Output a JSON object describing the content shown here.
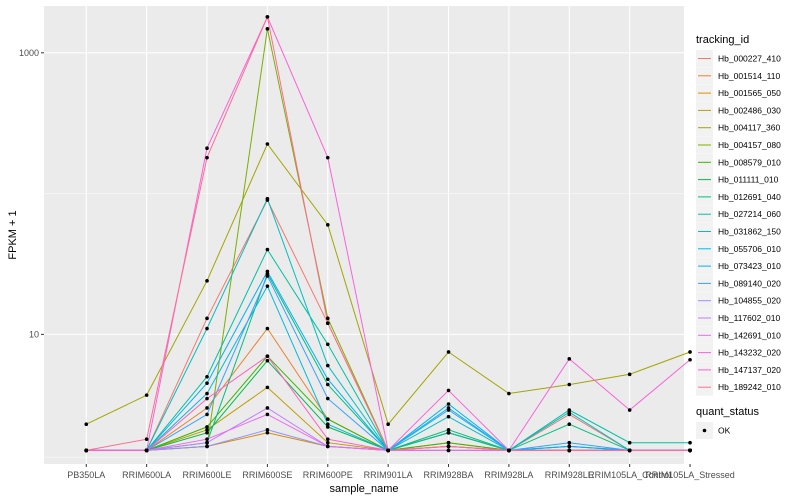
{
  "chart_data": {
    "type": "line",
    "xlabel": "sample_name",
    "ylabel": "FPKM + 1",
    "y_scale": "log10",
    "ylim": [
      1.2,
      2150
    ],
    "y_ticks": [
      10,
      1000
    ],
    "y_minor_ticks": [
      100
    ],
    "grid": true,
    "legend_placement": "right",
    "categories": [
      "PB350LA",
      "RRIM600LA",
      "RRIM600LE",
      "RRIM600SE",
      "RRIM600PE",
      "RRIM901LA",
      "RRIM928BA",
      "RRIM928LA",
      "RRIM928LE",
      "RRIM105LA_Control",
      "RRIM105LA_Stressed"
    ],
    "color_legend": {
      "title": "tracking_id",
      "entries": [
        "Hb_000227_410",
        "Hb_001514_110",
        "Hb_001565_050",
        "Hb_002486_030",
        "Hb_004117_360",
        "Hb_004157_080",
        "Hb_008579_010",
        "Hb_011111_010",
        "Hb_012691_040",
        "Hb_027214_060",
        "Hb_031862_150",
        "Hb_055706_010",
        "Hb_073423_010",
        "Hb_089140_020",
        "Hb_104855_020",
        "Hb_117602_010",
        "Hb_142691_010",
        "Hb_143232_020",
        "Hb_147137_020",
        "Hb_189242_010"
      ]
    },
    "shape_legend": {
      "title": "quant_status",
      "entries": [
        "OK"
      ]
    },
    "series": [
      {
        "name": "Hb_000227_410",
        "color": "#F8766D",
        "values": [
          1.5,
          1.5,
          13,
          90,
          12,
          1.5,
          2.0,
          1.5,
          2.7,
          1.5,
          1.5
        ]
      },
      {
        "name": "Hb_001514_110",
        "color": "#EA8331",
        "values": [
          1.5,
          1.5,
          3.0,
          11,
          2.5,
          1.5,
          2.0,
          1.5,
          1.6,
          1.5,
          1.5
        ]
      },
      {
        "name": "Hb_001565_050",
        "color": "#D89000",
        "values": [
          1.5,
          1.5,
          1.6,
          2.0,
          1.6,
          1.5,
          1.6,
          1.5,
          1.5,
          1.5,
          1.5
        ]
      },
      {
        "name": "Hb_002486_030",
        "color": "#C09B00",
        "values": [
          1.5,
          1.5,
          2.1,
          4.2,
          1.7,
          1.5,
          1.7,
          1.5,
          1.5,
          1.5,
          1.5
        ]
      },
      {
        "name": "Hb_004117_360",
        "color": "#A3A500",
        "values": [
          2.3,
          3.7,
          24,
          225,
          60,
          2.3,
          7.5,
          3.8,
          4.4,
          5.2,
          7.5
        ]
      },
      {
        "name": "Hb_004157_080",
        "color": "#7CAE00",
        "values": [
          1.5,
          1.5,
          1.6,
          1480,
          13,
          1.5,
          1.5,
          1.5,
          1.5,
          1.5,
          1.5
        ]
      },
      {
        "name": "Hb_008579_010",
        "color": "#39B600",
        "values": [
          1.5,
          1.5,
          2.2,
          7.0,
          2.5,
          1.5,
          1.7,
          1.5,
          1.5,
          1.5,
          1.5
        ]
      },
      {
        "name": "Hb_011111_010",
        "color": "#00BB4E",
        "values": [
          1.5,
          1.5,
          2.0,
          6.5,
          2.2,
          1.5,
          2.0,
          1.5,
          1.5,
          1.5,
          1.5
        ]
      },
      {
        "name": "Hb_012691_040",
        "color": "#00BF7D",
        "values": [
          1.5,
          1.5,
          1.7,
          27,
          4.4,
          1.5,
          2.1,
          1.5,
          2.3,
          1.5,
          1.5
        ]
      },
      {
        "name": "Hb_027214_060",
        "color": "#00C1A3",
        "values": [
          1.5,
          1.5,
          5.0,
          40,
          8.5,
          1.5,
          2.0,
          1.5,
          2.9,
          1.7,
          1.7
        ]
      },
      {
        "name": "Hb_031862_150",
        "color": "#00BFC4",
        "values": [
          1.5,
          1.5,
          11,
          92,
          6.0,
          1.5,
          2.6,
          1.5,
          2.8,
          1.5,
          1.5
        ]
      },
      {
        "name": "Hb_055706_010",
        "color": "#00BAE0",
        "values": [
          1.5,
          1.5,
          3.8,
          22,
          2.3,
          1.5,
          3.0,
          1.5,
          1.6,
          1.5,
          1.5
        ]
      },
      {
        "name": "Hb_073423_010",
        "color": "#00B0F6",
        "values": [
          1.5,
          1.5,
          4.5,
          28,
          4.8,
          1.5,
          3.2,
          1.5,
          1.6,
          1.5,
          1.5
        ]
      },
      {
        "name": "Hb_089140_020",
        "color": "#35A2FF",
        "values": [
          1.5,
          1.5,
          2.7,
          26,
          3.5,
          1.5,
          2.9,
          1.5,
          1.7,
          1.5,
          1.5
        ]
      },
      {
        "name": "Hb_104855_020",
        "color": "#9590FF",
        "values": [
          1.5,
          1.5,
          1.6,
          2.1,
          1.6,
          1.5,
          1.5,
          1.5,
          1.5,
          1.5,
          1.5
        ]
      },
      {
        "name": "Hb_117602_010",
        "color": "#C77CFF",
        "values": [
          1.5,
          1.5,
          1.7,
          3.0,
          1.6,
          1.5,
          1.6,
          1.5,
          1.5,
          1.5,
          1.5
        ]
      },
      {
        "name": "Hb_142691_010",
        "color": "#E76BF3",
        "values": [
          1.5,
          1.5,
          1.8,
          2.7,
          1.6,
          1.5,
          1.5,
          1.5,
          1.5,
          1.5,
          1.5
        ]
      },
      {
        "name": "Hb_143232_020",
        "color": "#FA62DB",
        "values": [
          1.5,
          1.5,
          210,
          1800,
          180,
          1.5,
          4.0,
          1.5,
          6.7,
          2.9,
          6.6
        ]
      },
      {
        "name": "Hb_147137_020",
        "color": "#FF62BC",
        "values": [
          1.5,
          1.5,
          3.5,
          7.0,
          1.8,
          1.5,
          1.6,
          1.5,
          1.5,
          1.5,
          1.5
        ]
      },
      {
        "name": "Hb_189242_010",
        "color": "#FF6C91",
        "values": [
          1.5,
          1.8,
          180,
          1800,
          12,
          1.5,
          1.6,
          1.5,
          1.5,
          1.5,
          1.5
        ]
      }
    ]
  }
}
